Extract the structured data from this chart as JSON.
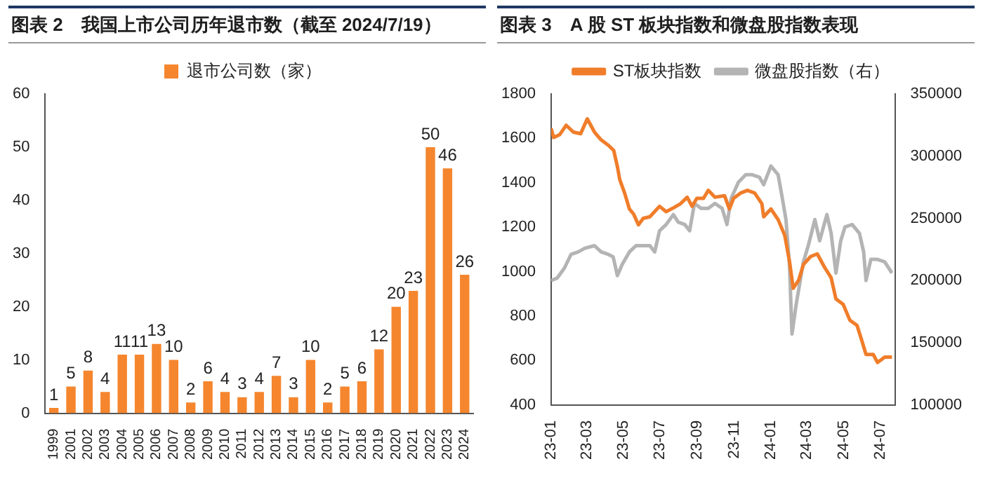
{
  "chart_data": [
    {
      "type": "bar",
      "title": "图表 2　我国上市公司历年退市数（截至 2024/7/19）",
      "categories": [
        "1999",
        "2001",
        "2002",
        "2003",
        "2004",
        "2005",
        "2006",
        "2007",
        "2008",
        "2009",
        "2010",
        "2011",
        "2012",
        "2013",
        "2014",
        "2015",
        "2016",
        "2017",
        "2018",
        "2019",
        "2020",
        "2021",
        "2022",
        "2023",
        "2024"
      ],
      "series": [
        {
          "name": "退市公司数（家）",
          "color": "#f5862e",
          "values": [
            1,
            5,
            8,
            4,
            11,
            11,
            13,
            10,
            2,
            6,
            4,
            3,
            4,
            7,
            3,
            10,
            2,
            5,
            6,
            12,
            20,
            23,
            50,
            46,
            26
          ]
        }
      ],
      "ylim": [
        0,
        60
      ],
      "yticks": [
        0,
        10,
        20,
        30,
        40,
        50,
        60
      ],
      "grid": false,
      "legend": "top",
      "data_labels": true
    },
    {
      "type": "line",
      "title": "图表 3　A 股 ST 板块指数和微盘股指数表现",
      "series": [
        {
          "name": "ST板块指数",
          "color": "#f07d2a",
          "x": [
            "2023-01-01",
            "2023-01-05",
            "2023-01-15",
            "2023-01-26",
            "2023-02-07",
            "2023-02-19",
            "2023-03-02",
            "2023-03-14",
            "2023-03-25",
            "2023-04-06",
            "2023-04-15",
            "2023-04-21",
            "2023-04-25",
            "2023-05-03",
            "2023-05-11",
            "2023-05-18",
            "2023-05-26",
            "2023-06-03",
            "2023-06-14",
            "2023-06-30",
            "2023-07-11",
            "2023-07-23",
            "2023-08-04",
            "2023-08-15",
            "2023-08-23",
            "2023-08-31",
            "2023-09-11",
            "2023-09-19",
            "2023-09-30",
            "2023-10-16",
            "2023-10-24",
            "2023-10-31",
            "2023-11-12",
            "2023-11-23",
            "2023-12-05",
            "2023-12-17",
            "2023-12-20",
            "2024-01-01",
            "2024-01-13",
            "2024-01-24",
            "2024-02-01",
            "2024-02-07",
            "2024-02-16",
            "2024-02-24",
            "2024-03-07",
            "2024-03-18",
            "2024-03-30",
            "2024-04-10",
            "2024-04-18",
            "2024-04-30",
            "2024-05-11",
            "2024-05-23",
            "2024-05-30",
            "2024-06-07",
            "2024-06-19",
            "2024-06-26",
            "2024-07-08",
            "2024-07-20"
          ],
          "values": [
            1645,
            1604,
            1616,
            1659,
            1628,
            1621,
            1688,
            1628,
            1593,
            1569,
            1545,
            1473,
            1414,
            1354,
            1282,
            1259,
            1211,
            1240,
            1247,
            1294,
            1270,
            1287,
            1306,
            1335,
            1294,
            1330,
            1330,
            1366,
            1335,
            1342,
            1282,
            1330,
            1354,
            1366,
            1354,
            1306,
            1247,
            1282,
            1234,
            1163,
            1044,
            925,
            961,
            1032,
            1068,
            1080,
            1020,
            973,
            877,
            853,
            782,
            758,
            698,
            627,
            627,
            591,
            615,
            615
          ]
        },
        {
          "name": "微盘股指数（右）",
          "color": "#b4b4b4",
          "axis": "y2",
          "x": [
            "2023-01-01",
            "2023-01-11",
            "2023-01-23",
            "2023-02-03",
            "2023-02-15",
            "2023-02-26",
            "2023-03-14",
            "2023-03-25",
            "2023-04-06",
            "2023-04-14",
            "2023-04-21",
            "2023-04-29",
            "2023-05-11",
            "2023-05-22",
            "2023-06-03",
            "2023-06-14",
            "2023-06-22",
            "2023-06-30",
            "2023-07-11",
            "2023-07-23",
            "2023-07-31",
            "2023-08-11",
            "2023-08-19",
            "2023-08-27",
            "2023-09-07",
            "2023-09-19",
            "2023-09-30",
            "2023-10-12",
            "2023-10-20",
            "2023-10-27",
            "2023-11-08",
            "2023-11-20",
            "2023-12-01",
            "2023-12-13",
            "2023-12-20",
            "2024-01-01",
            "2024-01-13",
            "2024-01-20",
            "2024-01-26",
            "2024-02-01",
            "2024-02-05",
            "2024-02-12",
            "2024-02-24",
            "2024-03-03",
            "2024-03-14",
            "2024-03-22",
            "2024-04-03",
            "2024-04-10",
            "2024-04-18",
            "2024-04-26",
            "2024-05-03",
            "2024-05-15",
            "2024-05-27",
            "2024-06-03",
            "2024-06-07",
            "2024-06-15",
            "2024-06-26",
            "2024-07-08",
            "2024-07-20"
          ],
          "values": [
            200000,
            202000,
            210000,
            221000,
            223000,
            226000,
            228000,
            223000,
            221000,
            219000,
            204000,
            213000,
            223000,
            228000,
            228000,
            228000,
            223000,
            240000,
            245000,
            253000,
            247000,
            245000,
            240000,
            262000,
            258000,
            258000,
            262000,
            258000,
            245000,
            266000,
            279000,
            285000,
            285000,
            283000,
            277000,
            292000,
            285000,
            266000,
            249000,
            211000,
            157000,
            181000,
            215000,
            228000,
            249000,
            232000,
            253000,
            238000,
            206000,
            232000,
            243000,
            245000,
            238000,
            223000,
            200000,
            217000,
            217000,
            215000,
            206000
          ]
        }
      ],
      "xlim": [
        "2023-01-01",
        "2024-07-25"
      ],
      "xticks": [
        {
          "value": "2023-01-01",
          "label": "23-01"
        },
        {
          "value": "2023-03-01",
          "label": "23-03"
        },
        {
          "value": "2023-05-01",
          "label": "23-05"
        },
        {
          "value": "2023-07-01",
          "label": "23-07"
        },
        {
          "value": "2023-09-01",
          "label": "23-09"
        },
        {
          "value": "2023-11-01",
          "label": "23-11"
        },
        {
          "value": "2024-01-01",
          "label": "24-01"
        },
        {
          "value": "2024-03-01",
          "label": "24-03"
        },
        {
          "value": "2024-05-01",
          "label": "24-05"
        },
        {
          "value": "2024-07-01",
          "label": "24-07"
        }
      ],
      "ylim": [
        400,
        1800
      ],
      "yticks": [
        400,
        600,
        800,
        1000,
        1200,
        1400,
        1600,
        1800
      ],
      "y2lim": [
        100000,
        350000
      ],
      "y2ticks": [
        100000,
        150000,
        200000,
        250000,
        300000,
        350000
      ],
      "grid": false,
      "legend": "top",
      "marker": "none",
      "line_style": "solid"
    }
  ]
}
